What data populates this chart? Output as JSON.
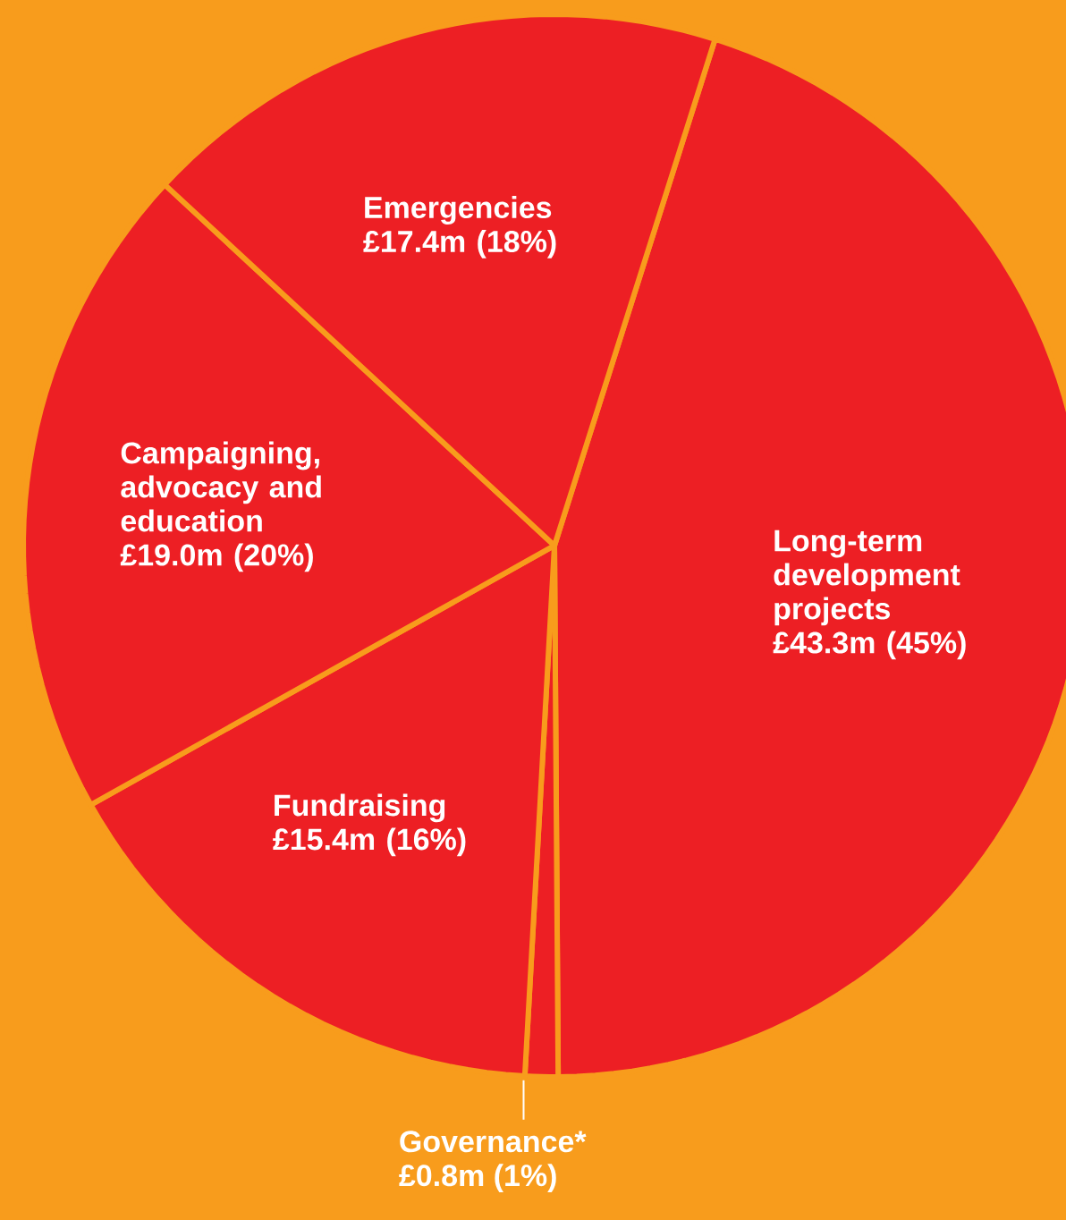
{
  "chart_data": {
    "type": "pie",
    "categories": [
      "Long-term development projects",
      "Governance*",
      "Fundraising",
      "Campaigning, advocacy and education",
      "Emergencies"
    ],
    "values": [
      45,
      1,
      16,
      20,
      18
    ],
    "value_labels": [
      "£43.3m (45%)",
      "£0.8m (1%)",
      "£15.4m (16%)",
      "£19.0m (20%)",
      "£17.4m (18%)"
    ],
    "colors": [
      "#ed1f24",
      "#ed1f24",
      "#ed1f24",
      "#ed1f24",
      "#ed1f24"
    ]
  }
}
